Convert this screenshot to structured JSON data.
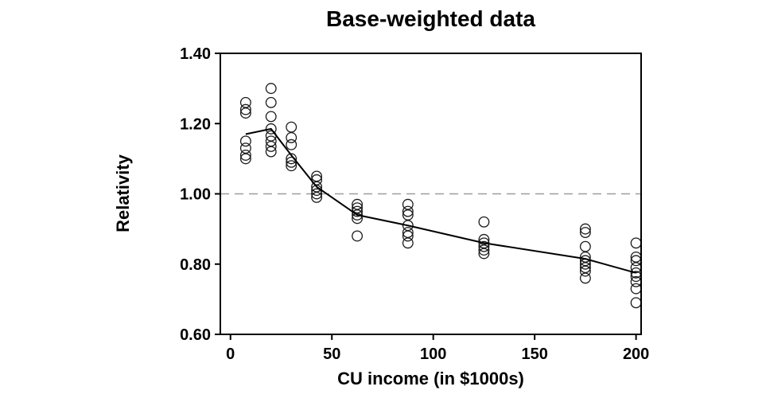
{
  "chart_data": {
    "type": "scatter",
    "title": "Base-weighted data",
    "xlabel": "CU income (in $1000s)",
    "ylabel": "Relativity",
    "xlim": [
      -5,
      202.5
    ],
    "ylim": [
      0.6,
      1.4
    ],
    "x_ticks": [
      0,
      50,
      100,
      150,
      200
    ],
    "y_ticks": [
      0.6,
      0.8,
      1.0,
      1.2,
      1.4
    ],
    "y_tick_decimals": 2,
    "grid": "off",
    "legend": "none",
    "reference_line": {
      "y": 1.0,
      "style": "dashed",
      "color": "#9e9e9e"
    },
    "colors": {
      "frame": "#000000",
      "marker": "#1a1a1a",
      "trend": "#000000"
    },
    "series": [
      {
        "name": "relativity-observations",
        "kind": "scatter",
        "marker": "open-circle",
        "groups": [
          {
            "x": 7.5,
            "y": [
              1.26,
              1.24,
              1.23,
              1.15,
              1.13,
              1.11,
              1.1
            ]
          },
          {
            "x": 20,
            "y": [
              1.3,
              1.26,
              1.22,
              1.185,
              1.165,
              1.15,
              1.135,
              1.12
            ]
          },
          {
            "x": 30,
            "y": [
              1.19,
              1.16,
              1.14,
              1.1,
              1.09,
              1.08
            ]
          },
          {
            "x": 42.5,
            "y": [
              1.05,
              1.04,
              1.02,
              1.01,
              1.0,
              0.99
            ]
          },
          {
            "x": 62.5,
            "y": [
              0.97,
              0.96,
              0.95,
              0.94,
              0.93,
              0.88
            ]
          },
          {
            "x": 87.5,
            "y": [
              0.97,
              0.95,
              0.94,
              0.91,
              0.89,
              0.88,
              0.86
            ]
          },
          {
            "x": 125,
            "y": [
              0.92,
              0.87,
              0.86,
              0.85,
              0.84,
              0.83
            ]
          },
          {
            "x": 175,
            "y": [
              0.9,
              0.89,
              0.85,
              0.82,
              0.81,
              0.8,
              0.79,
              0.78,
              0.76
            ]
          },
          {
            "x": 200,
            "y": [
              0.86,
              0.82,
              0.81,
              0.79,
              0.775,
              0.765,
              0.75,
              0.73,
              0.69
            ]
          }
        ]
      },
      {
        "name": "mean-trend-line",
        "kind": "line",
        "x": [
          7.5,
          20,
          30,
          42.5,
          62.5,
          87.5,
          125,
          175,
          200
        ],
        "y": [
          1.17,
          1.185,
          1.11,
          1.02,
          0.94,
          0.91,
          0.86,
          0.815,
          0.775
        ]
      }
    ]
  }
}
